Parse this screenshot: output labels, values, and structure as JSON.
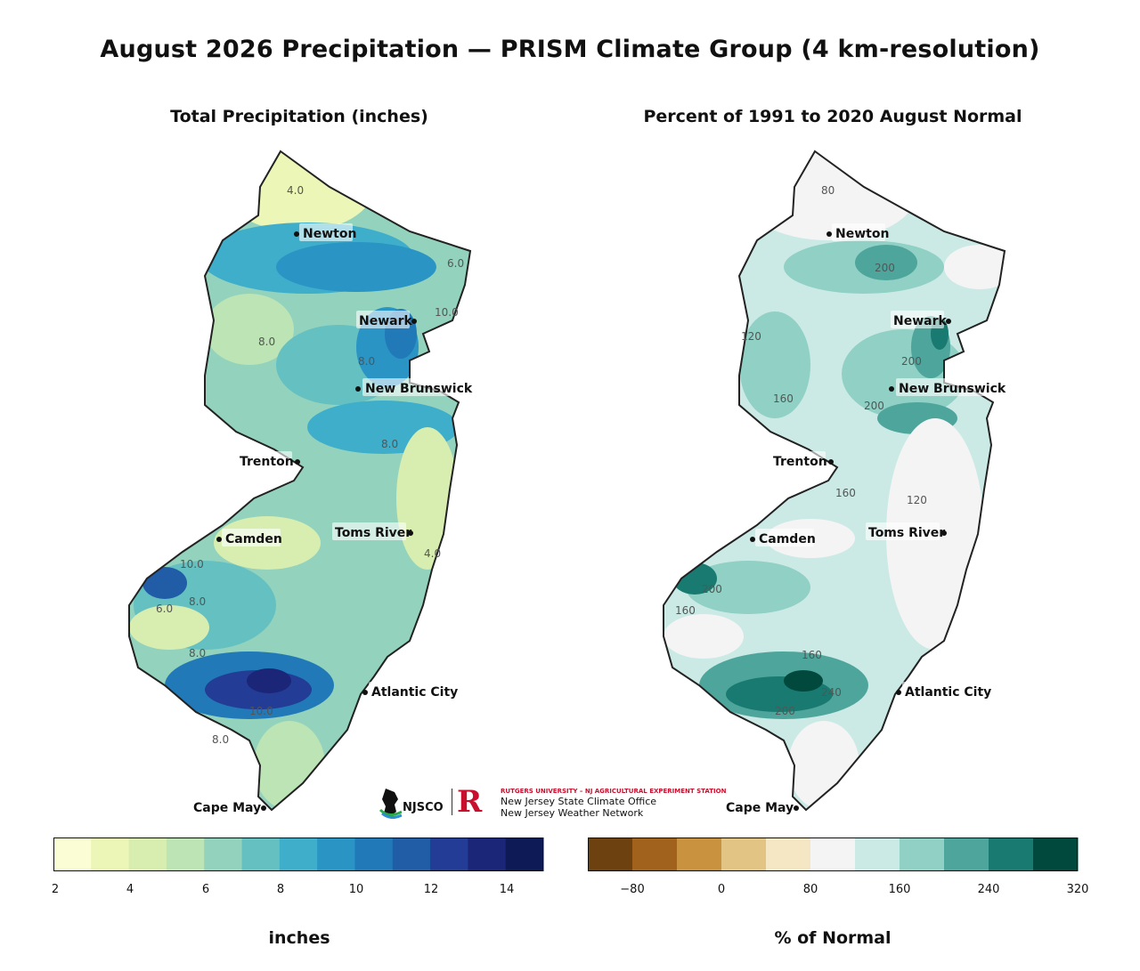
{
  "title": "August 2026 Precipitation — PRISM Climate Group (4 km-resolution)",
  "left_panel": {
    "subtitle": "Total Precipitation (inches)",
    "contour_labels": [
      "4.0",
      "6.0",
      "8.0",
      "10.0",
      "8.0",
      "8.0",
      "4.0",
      "10.0",
      "6.0",
      "8.0",
      "8.0",
      "10.0",
      "8.0"
    ],
    "colorbar": {
      "colors": [
        "#fbfdd5",
        "#ecf6b6",
        "#d8eeb1",
        "#bde4b5",
        "#93d3bd",
        "#64c0c1",
        "#3eaecb",
        "#2a94c4",
        "#2179b8",
        "#205da6",
        "#233c96",
        "#1b2678",
        "#0d1a55"
      ],
      "ticks": [
        "2",
        "4",
        "6",
        "8",
        "10",
        "12",
        "14"
      ],
      "label": "inches"
    }
  },
  "right_panel": {
    "subtitle": "Percent of 1991 to 2020 August Normal",
    "contour_labels": [
      "80",
      "200",
      "120",
      "160",
      "200",
      "200",
      "160",
      "120",
      "200",
      "160",
      "200",
      "160",
      "240"
    ],
    "colorbar": {
      "colors": [
        "#6e4110",
        "#a0621c",
        "#c8923e",
        "#e2c585",
        "#f6e7c4",
        "#f4f4f4",
        "#cbeae5",
        "#90d0c5",
        "#4ea59c",
        "#187a70",
        "#01493c"
      ],
      "ticks": [
        "−80",
        "0",
        "80",
        "160",
        "240",
        "320"
      ],
      "label": "% of Normal"
    }
  },
  "cities": [
    "Newton",
    "Newark",
    "New Brunswick",
    "Trenton",
    "Camden",
    "Toms River",
    "Atlantic City",
    "Cape May"
  ],
  "logo": {
    "njsco": "NJSCO",
    "line1": "RUTGERS UNIVERSITY – NJ AGRICULTURAL EXPERIMENT STATION",
    "line2": "New Jersey State Climate Office",
    "line3": "New Jersey Weather Network",
    "rutgers_mark": "R"
  }
}
